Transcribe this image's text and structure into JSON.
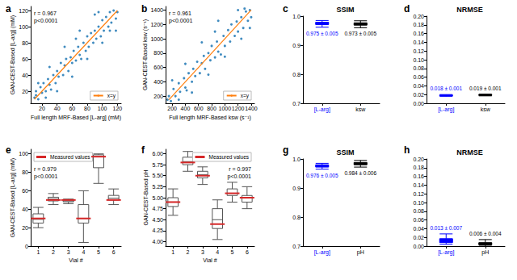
{
  "chart_data": [
    {
      "panel_label": "a",
      "type": "scatter",
      "x_label": "Full length MRF-Based [L-arg] (mM)",
      "y_label": "GAN-CEST-Based [L-arg] (mM)",
      "annotations": [
        "r = 0.967",
        "p<0.0001"
      ],
      "series": [
        {
          "type": "scatter",
          "color": "#1f77b4",
          "values": [
            [
              12,
              15
            ],
            [
              15,
              10
            ],
            [
              18,
              25
            ],
            [
              20,
              18
            ],
            [
              22,
              30
            ],
            [
              25,
              20
            ],
            [
              28,
              35
            ],
            [
              30,
              28
            ],
            [
              32,
              22
            ],
            [
              35,
              40
            ],
            [
              38,
              30
            ],
            [
              40,
              45
            ],
            [
              42,
              38
            ],
            [
              45,
              55
            ],
            [
              48,
              40
            ],
            [
              50,
              52
            ],
            [
              52,
              60
            ],
            [
              55,
              45
            ],
            [
              58,
              62
            ],
            [
              60,
              55
            ],
            [
              62,
              70
            ],
            [
              65,
              58
            ],
            [
              68,
              75
            ],
            [
              70,
              65
            ],
            [
              72,
              60
            ],
            [
              75,
              80
            ],
            [
              78,
              70
            ],
            [
              80,
              88
            ],
            [
              82,
              75
            ],
            [
              85,
              92
            ],
            [
              88,
              80
            ],
            [
              90,
              95
            ],
            [
              92,
              85
            ],
            [
              95,
              100
            ],
            [
              98,
              88
            ],
            [
              100,
              108
            ],
            [
              102,
              95
            ],
            [
              105,
              112
            ],
            [
              108,
              100
            ],
            [
              110,
              118
            ],
            [
              112,
              105
            ],
            [
              115,
              120
            ],
            [
              118,
              110
            ],
            [
              120,
              118
            ],
            [
              15,
              30
            ],
            [
              30,
              50
            ],
            [
              50,
              75
            ],
            [
              70,
              95
            ],
            [
              90,
              115
            ],
            [
              40,
              20
            ],
            [
              60,
              38
            ],
            [
              80,
              60
            ],
            [
              100,
              80
            ],
            [
              118,
              95
            ],
            [
              25,
              12
            ],
            [
              10,
              12
            ],
            [
              12,
              20
            ],
            [
              110,
              95
            ],
            [
              95,
              118
            ],
            [
              65,
              85
            ]
          ]
        },
        {
          "name": "x=y",
          "type": "line",
          "color": "#ff7f0e",
          "values": [
            [
              10,
              10
            ],
            [
              120,
              120
            ]
          ]
        }
      ],
      "xlim": [
        5,
        125
      ],
      "xticks": [
        20,
        40,
        60,
        80,
        100,
        120
      ],
      "ylim": [
        5,
        125
      ],
      "yticks": [
        20,
        40,
        60,
        80,
        100,
        120
      ],
      "legend": "lower right"
    },
    {
      "panel_label": "b",
      "type": "scatter",
      "x_label": "Full length MRF-Based ksw (s⁻¹)",
      "y_label": "GAN-CEST-Based ksw (s⁻¹)",
      "annotations": [
        "r = 0.961",
        "p<0.0001"
      ],
      "series": [
        {
          "type": "scatter",
          "color": "#1f77b4",
          "values": [
            [
              150,
              200
            ],
            [
              180,
              130
            ],
            [
              220,
              300
            ],
            [
              250,
              200
            ],
            [
              300,
              380
            ],
            [
              320,
              260
            ],
            [
              380,
              450
            ],
            [
              400,
              320
            ],
            [
              420,
              280
            ],
            [
              450,
              520
            ],
            [
              500,
              400
            ],
            [
              520,
              580
            ],
            [
              550,
              480
            ],
            [
              580,
              680
            ],
            [
              620,
              520
            ],
            [
              650,
              660
            ],
            [
              680,
              760
            ],
            [
              700,
              580
            ],
            [
              750,
              800
            ],
            [
              780,
              700
            ],
            [
              800,
              900
            ],
            [
              850,
              740
            ],
            [
              880,
              960
            ],
            [
              900,
              820
            ],
            [
              940,
              780
            ],
            [
              980,
              1040
            ],
            [
              1000,
              900
            ],
            [
              1050,
              1120
            ],
            [
              1080,
              960
            ],
            [
              1100,
              1200
            ],
            [
              1150,
              1040
            ],
            [
              1180,
              1240
            ],
            [
              1200,
              1100
            ],
            [
              1250,
              1300
            ],
            [
              1280,
              1150
            ],
            [
              1320,
              1380
            ],
            [
              1350,
              1250
            ],
            [
              1380,
              1400
            ],
            [
              1400,
              1300
            ],
            [
              200,
              420
            ],
            [
              400,
              650
            ],
            [
              650,
              950
            ],
            [
              900,
              1250
            ],
            [
              500,
              250
            ],
            [
              750,
              500
            ],
            [
              1000,
              750
            ],
            [
              1250,
              1000
            ],
            [
              1380,
              1150
            ],
            [
              300,
              150
            ],
            [
              130,
              150
            ],
            [
              1300,
              1420
            ],
            [
              1200,
              1400
            ],
            [
              850,
              1100
            ]
          ]
        },
        {
          "name": "x=y",
          "type": "line",
          "color": "#ff7f0e",
          "values": [
            [
              150,
              150
            ],
            [
              1400,
              1400
            ]
          ]
        }
      ],
      "xlim": [
        100,
        1450
      ],
      "xticks": [
        200,
        400,
        600,
        800,
        1000,
        1200,
        1400
      ],
      "ylim": [
        100,
        1450
      ],
      "yticks": [
        200,
        400,
        600,
        800,
        1000,
        1200,
        1400
      ],
      "legend": "lower right"
    },
    {
      "panel_label": "c",
      "type": "boxplot",
      "title": "SSIM",
      "categories": [
        "[L-arg]",
        "ksw"
      ],
      "boxes": [
        [
          0.962,
          0.971,
          0.975,
          0.979,
          0.985
        ],
        [
          0.96,
          0.969,
          0.973,
          0.977,
          0.984
        ]
      ],
      "colors": [
        "#0000ff",
        "#000000"
      ],
      "box_annotations": [
        "0.975 ± 0.005",
        "0.973 ± 0.005"
      ],
      "ylim": [
        0.7,
        1.0
      ],
      "yticks": [
        0.7,
        0.8,
        0.9,
        {
          "value": 1.0,
          "label": "1.0"
        }
      ]
    },
    {
      "panel_label": "d",
      "type": "boxplot",
      "title": "NRMSE",
      "categories": [
        "[L-arg]",
        "ksw"
      ],
      "boxes": [
        [
          0.016,
          0.017,
          0.018,
          0.019,
          0.02
        ],
        [
          0.017,
          0.018,
          0.019,
          0.02,
          0.021
        ]
      ],
      "colors": [
        "#0000ff",
        "#000000"
      ],
      "box_annotations": [
        "0.018 ± 0.001",
        "0.019 ± 0.001"
      ],
      "ylim": [
        0,
        0.2
      ],
      "yticks": [
        {
          "value": 0,
          "label": "0.00"
        },
        {
          "value": 0.02,
          "label": "0.02"
        },
        {
          "value": 0.04,
          "label": "0.04"
        },
        {
          "value": 0.06,
          "label": "0.06"
        },
        {
          "value": 0.08,
          "label": "0.08"
        },
        {
          "value": 0.1,
          "label": "0.10"
        },
        {
          "value": 0.12,
          "label": "0.12"
        },
        {
          "value": 0.14,
          "label": "0.14"
        },
        {
          "value": 0.16,
          "label": "0.16"
        },
        {
          "value": 0.18,
          "label": "0.18"
        },
        {
          "value": 0.2,
          "label": "0.20"
        }
      ]
    },
    {
      "panel_label": "e",
      "type": "boxplot",
      "x_label": "Vial #",
      "y_label": "GAN-CEST-Based [L-arg] (mM)",
      "annotations": [
        "r = 0.979",
        "p<0.0001"
      ],
      "categories": [
        "1",
        "2",
        "3",
        "4",
        "5",
        "6"
      ],
      "boxes": [
        [
          20,
          25,
          29,
          35,
          42
        ],
        [
          45,
          49,
          51,
          53,
          57
        ],
        [
          46,
          48,
          49,
          50,
          51
        ],
        [
          4,
          25,
          30,
          45,
          60
        ],
        [
          68,
          85,
          97,
          99,
          100
        ],
        [
          45,
          50,
          52,
          55,
          62
        ]
      ],
      "color": "#555555",
      "series": [
        {
          "name": "Measured values",
          "type": "scatter",
          "marker": "line",
          "color": "#d62728",
          "values": [
            30,
            50,
            50,
            30,
            97,
            50
          ]
        }
      ],
      "ylim": [
        0,
        105
      ],
      "yticks": [
        0,
        20,
        40,
        60,
        80,
        100
      ],
      "legend": "upper left"
    },
    {
      "panel_label": "f",
      "type": "boxplot",
      "x_label": "Vial #",
      "y_label": "GAN-CEST-Based pH",
      "annotations": [
        "r = 0.997",
        "p<0.0001"
      ],
      "categories": [
        "1",
        "2",
        "3",
        "4",
        "5",
        "6"
      ],
      "boxes": [
        [
          4.6,
          4.8,
          4.9,
          5.0,
          5.2
        ],
        [
          5.6,
          5.75,
          5.82,
          5.92,
          6.05
        ],
        [
          5.3,
          5.45,
          5.52,
          5.6,
          5.7
        ],
        [
          4.05,
          4.3,
          4.5,
          4.75,
          4.95
        ],
        [
          4.9,
          5.05,
          5.1,
          5.2,
          5.35
        ],
        [
          4.75,
          4.9,
          5.0,
          5.05,
          5.25
        ]
      ],
      "color": "#555555",
      "series": [
        {
          "name": "Measured values",
          "type": "scatter",
          "marker": "line",
          "color": "#d62728",
          "values": [
            4.9,
            5.8,
            5.5,
            4.4,
            5.1,
            5.0
          ]
        }
      ],
      "ylim": [
        3.9,
        6.1
      ],
      "yticks": [
        {
          "value": 4,
          "label": "4.00"
        },
        {
          "value": 4.25,
          "label": "4.25"
        },
        {
          "value": 4.5,
          "label": "4.50"
        },
        {
          "value": 4.75,
          "label": "4.75"
        },
        {
          "value": 5,
          "label": "5.00"
        },
        {
          "value": 5.25,
          "label": "5.25"
        },
        {
          "value": 5.5,
          "label": "5.50"
        },
        {
          "value": 5.75,
          "label": "5.75"
        },
        {
          "value": 6,
          "label": "6.00"
        }
      ],
      "legend": "upper right"
    },
    {
      "panel_label": "g",
      "type": "boxplot",
      "title": "SSIM",
      "categories": [
        "[L-arg]",
        "pH"
      ],
      "boxes": [
        [
          0.965,
          0.972,
          0.976,
          0.98,
          0.985
        ],
        [
          0.972,
          0.98,
          0.984,
          0.988,
          0.995
        ]
      ],
      "colors": [
        "#0000ff",
        "#000000"
      ],
      "box_annotations": [
        "0.976 ± 0.005",
        "0.984 ± 0.006"
      ],
      "ylim": [
        0.7,
        1.0
      ],
      "yticks": [
        0.7,
        0.8,
        0.9,
        {
          "value": 1.0,
          "label": "1.0"
        }
      ]
    },
    {
      "panel_label": "h",
      "type": "boxplot",
      "title": "NRMSE",
      "categories": [
        "[L-arg]",
        "pH"
      ],
      "boxes": [
        [
          0.004,
          0.008,
          0.012,
          0.017,
          0.028
        ],
        [
          0.0,
          0.003,
          0.005,
          0.008,
          0.015
        ]
      ],
      "colors": [
        "#0000ff",
        "#000000"
      ],
      "box_annotations": [
        "0.013 ± 0.007",
        "0.006 ± 0.004"
      ],
      "ylim": [
        0,
        0.2
      ],
      "yticks": [
        {
          "value": 0,
          "label": "0.00"
        },
        {
          "value": 0.02,
          "label": "0.02"
        },
        {
          "value": 0.04,
          "label": "0.04"
        },
        {
          "value": 0.06,
          "label": "0.06"
        },
        {
          "value": 0.08,
          "label": "0.08"
        },
        {
          "value": 0.1,
          "label": "0.10"
        },
        {
          "value": 0.12,
          "label": "0.12"
        },
        {
          "value": 0.14,
          "label": "0.14"
        },
        {
          "value": 0.16,
          "label": "0.16"
        },
        {
          "value": 0.18,
          "label": "0.18"
        },
        {
          "value": 0.2,
          "label": "0.20"
        }
      ]
    }
  ]
}
